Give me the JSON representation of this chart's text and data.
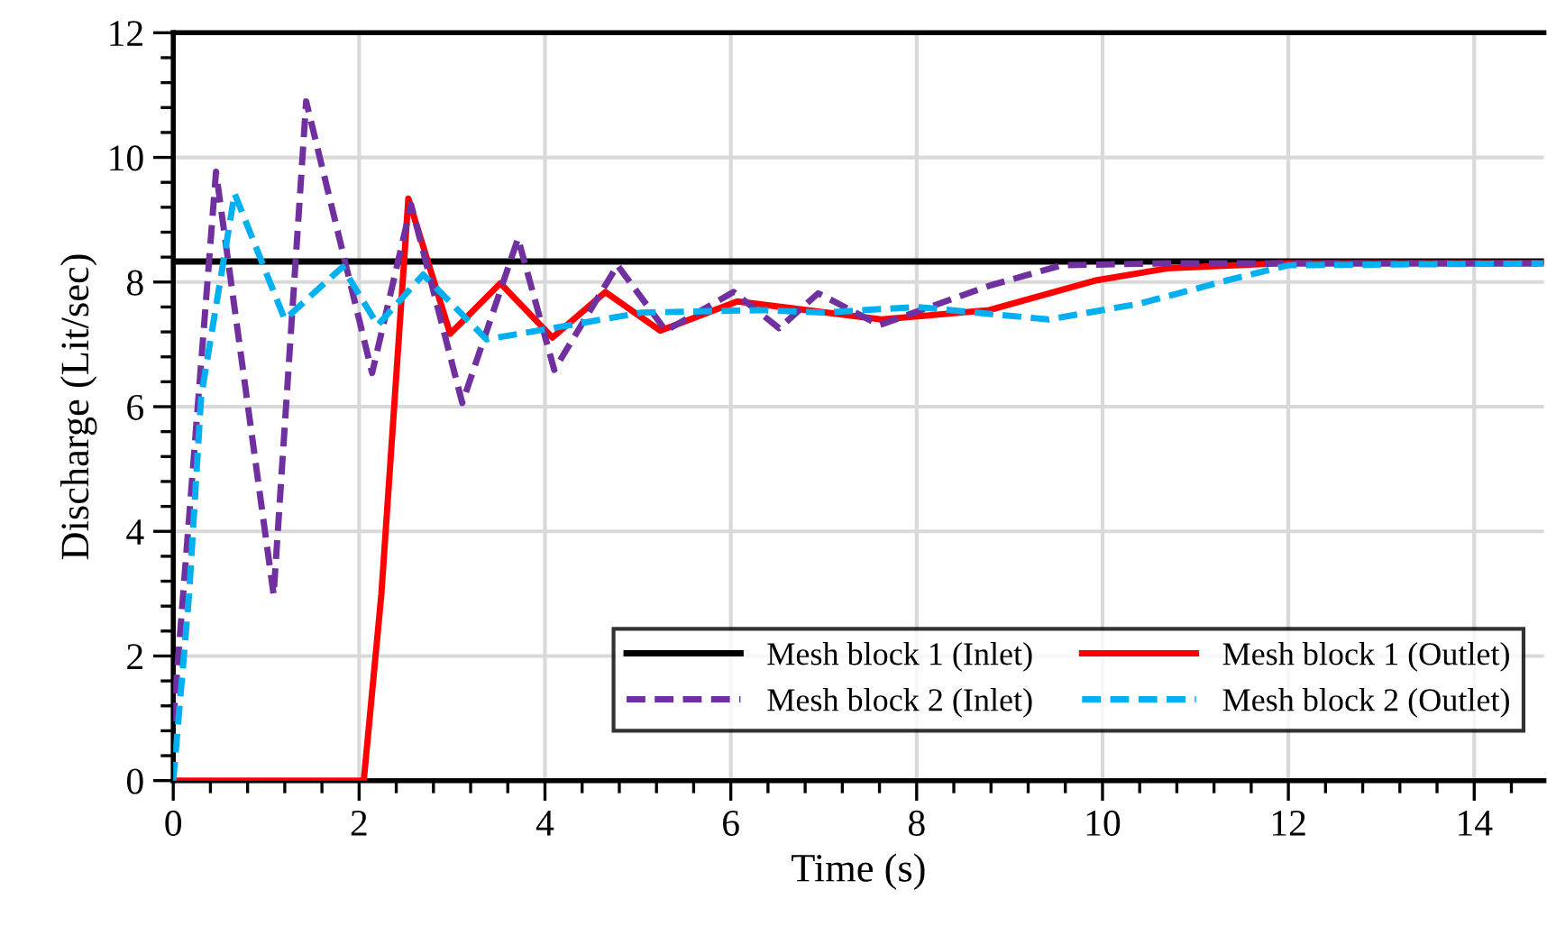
{
  "chart_data": {
    "type": "line",
    "xlabel": "Time (s)",
    "ylabel": "Discharge (Lit/sec)",
    "xlim": [
      0,
      14.75
    ],
    "xticks": [
      0,
      2,
      4,
      6,
      8,
      10,
      12,
      14
    ],
    "ylim": [
      0,
      12
    ],
    "yticks": [
      0,
      2,
      4,
      6,
      8,
      10,
      12
    ],
    "grid": true,
    "legend": "bottom right",
    "marker": "none",
    "series": [
      {
        "name": "Mesh block 1 (Inlet)",
        "color": "#000000",
        "line_style": "solid",
        "x": [
          0,
          14.75
        ],
        "values": [
          8.33,
          8.33
        ]
      },
      {
        "name": "Mesh block 1 (Outlet)",
        "color": "#ff0000",
        "line_style": "solid",
        "x": [
          0,
          2.05,
          2.24,
          2.53,
          2.98,
          3.52,
          4.08,
          4.65,
          5.24,
          6.07,
          7.62,
          8.78,
          9.94,
          10.7,
          11.9,
          14.75
        ],
        "values": [
          0,
          0,
          3.0,
          9.34,
          7.17,
          7.98,
          7.11,
          7.84,
          7.22,
          7.69,
          7.4,
          7.55,
          8.03,
          8.22,
          8.3,
          8.3
        ]
      },
      {
        "name": "Mesh block 2 (Inlet)",
        "color": "#7030a0",
        "line_style": "dashed",
        "x": [
          0,
          0.46,
          1.08,
          1.43,
          2.14,
          2.56,
          3.11,
          3.71,
          4.1,
          4.78,
          5.3,
          6.03,
          6.52,
          6.94,
          7.6,
          8.78,
          9.56,
          10.7,
          14.75
        ],
        "values": [
          0.95,
          9.77,
          2.98,
          10.9,
          6.54,
          9.24,
          6.06,
          8.7,
          6.59,
          8.27,
          7.22,
          7.84,
          7.26,
          7.82,
          7.31,
          7.94,
          8.27,
          8.3,
          8.3
        ]
      },
      {
        "name": "Mesh block 2 (Outlet)",
        "color": "#00b0f0",
        "line_style": "dashed",
        "x": [
          0,
          0.17,
          0.3,
          0.66,
          1.2,
          1.82,
          2.2,
          2.69,
          3.37,
          4.08,
          5.04,
          6.33,
          7.0,
          8.0,
          9.42,
          10.39,
          11.35,
          12.0,
          14.75
        ],
        "values": [
          0,
          2.98,
          6.16,
          9.42,
          7.4,
          8.24,
          7.31,
          8.12,
          7.08,
          7.26,
          7.51,
          7.55,
          7.51,
          7.6,
          7.4,
          7.65,
          8.03,
          8.27,
          8.3
        ]
      }
    ]
  }
}
